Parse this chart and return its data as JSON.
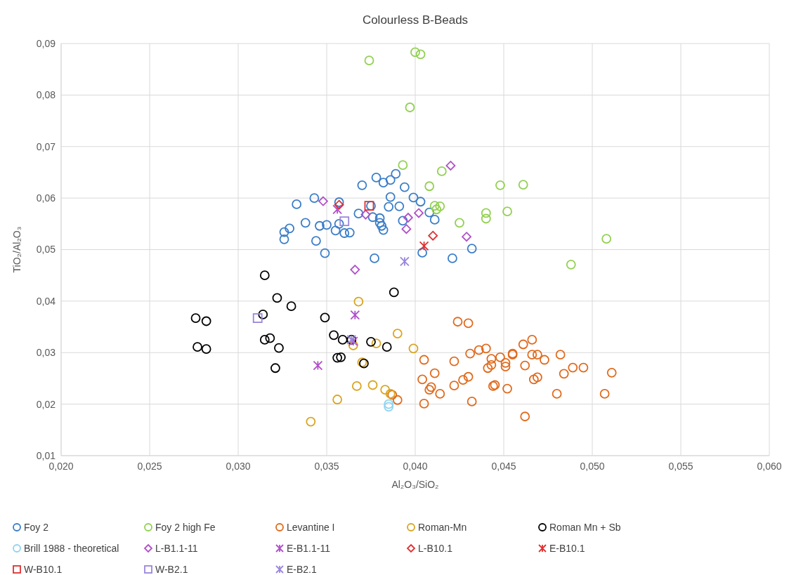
{
  "chart_data": {
    "type": "scatter",
    "title": "Colourless B-Beads",
    "xlabel": "Al₂O₃/SiO₂",
    "ylabel": "TiO₂/Al₂O₃",
    "xlim": [
      0.02,
      0.06
    ],
    "ylim": [
      0.01,
      0.09
    ],
    "xticks": [
      {
        "value": 0.02,
        "label": "0,020"
      },
      {
        "value": 0.025,
        "label": "0,025"
      },
      {
        "value": 0.03,
        "label": "0,030"
      },
      {
        "value": 0.035,
        "label": "0,035"
      },
      {
        "value": 0.04,
        "label": "0,040"
      },
      {
        "value": 0.045,
        "label": "0,045"
      },
      {
        "value": 0.05,
        "label": "0,050"
      },
      {
        "value": 0.055,
        "label": "0,055"
      },
      {
        "value": 0.06,
        "label": "0,060"
      }
    ],
    "yticks": [
      {
        "value": 0.01,
        "label": "0,01"
      },
      {
        "value": 0.02,
        "label": "0,02"
      },
      {
        "value": 0.03,
        "label": "0,03"
      },
      {
        "value": 0.04,
        "label": "0,04"
      },
      {
        "value": 0.05,
        "label": "0,05"
      },
      {
        "value": 0.06,
        "label": "0,06"
      },
      {
        "value": 0.07,
        "label": "0,07"
      },
      {
        "value": 0.08,
        "label": "0,08"
      },
      {
        "value": 0.09,
        "label": "0,09"
      }
    ],
    "grid": true,
    "legend": "bottom",
    "series": [
      {
        "name": "Foy 2",
        "color": "#3a7dc8",
        "marker": "circle",
        "x": [
          0.0333,
          0.0343,
          0.0338,
          0.0346,
          0.035,
          0.0355,
          0.0357,
          0.0357,
          0.036,
          0.0363,
          0.0326,
          0.0329,
          0.0326,
          0.0344,
          0.0349,
          0.037,
          0.0368,
          0.0376,
          0.0378,
          0.0382,
          0.0386,
          0.0389,
          0.0394,
          0.0386,
          0.0385,
          0.038,
          0.038,
          0.0381,
          0.0382,
          0.0391,
          0.0393,
          0.0399,
          0.0403,
          0.0408,
          0.0411,
          0.0377,
          0.0404,
          0.0421,
          0.0432,
          0.0375
        ],
        "values": [
          0.0588,
          0.06,
          0.0552,
          0.0546,
          0.0548,
          0.0537,
          0.0592,
          0.055,
          0.0532,
          0.0533,
          0.0534,
          0.0541,
          0.052,
          0.0517,
          0.0493,
          0.0625,
          0.057,
          0.0563,
          0.064,
          0.063,
          0.0635,
          0.0647,
          0.0621,
          0.0602,
          0.0583,
          0.0561,
          0.0552,
          0.0546,
          0.0538,
          0.0584,
          0.0556,
          0.0601,
          0.0593,
          0.0572,
          0.0558,
          0.0483,
          0.0494,
          0.0483,
          0.0502,
          0.0585
        ]
      },
      {
        "name": "Foy 2 high Fe",
        "color": "#92d050",
        "marker": "circle",
        "x": [
          0.0374,
          0.04,
          0.0403,
          0.0397,
          0.0393,
          0.0415,
          0.0408,
          0.0411,
          0.0414,
          0.0412,
          0.0425,
          0.044,
          0.044,
          0.0452,
          0.0448,
          0.0461,
          0.0508,
          0.0488
        ],
        "values": [
          0.0867,
          0.0883,
          0.0879,
          0.0776,
          0.0664,
          0.0652,
          0.0623,
          0.0585,
          0.0584,
          0.0578,
          0.0552,
          0.0571,
          0.056,
          0.0574,
          0.0625,
          0.0626,
          0.0521,
          0.0471
        ]
      },
      {
        "name": "Levantine I",
        "color": "#e06a1c",
        "marker": "circle",
        "x": [
          0.0424,
          0.043,
          0.0405,
          0.0404,
          0.0411,
          0.0409,
          0.0408,
          0.0405,
          0.0414,
          0.0422,
          0.0422,
          0.0427,
          0.043,
          0.0431,
          0.0436,
          0.044,
          0.0432,
          0.0441,
          0.0443,
          0.0443,
          0.0444,
          0.0445,
          0.0448,
          0.0451,
          0.0451,
          0.0452,
          0.0455,
          0.0455,
          0.0461,
          0.0462,
          0.0466,
          0.0466,
          0.0469,
          0.0467,
          0.0469,
          0.0473,
          0.0462,
          0.048,
          0.0482,
          0.0484,
          0.0489,
          0.0495,
          0.0507,
          0.0511,
          0.0387,
          0.039
        ],
        "values": [
          0.036,
          0.0357,
          0.0286,
          0.0248,
          0.026,
          0.0233,
          0.0228,
          0.0201,
          0.022,
          0.0283,
          0.0236,
          0.0247,
          0.0253,
          0.0298,
          0.0305,
          0.0308,
          0.0205,
          0.027,
          0.0276,
          0.0288,
          0.0235,
          0.0237,
          0.0291,
          0.028,
          0.0273,
          0.023,
          0.0296,
          0.0298,
          0.0316,
          0.0275,
          0.0325,
          0.0296,
          0.0296,
          0.0248,
          0.0252,
          0.0286,
          0.0176,
          0.022,
          0.0296,
          0.0259,
          0.0271,
          0.0271,
          0.022,
          0.0261,
          0.0218,
          0.0208
        ]
      },
      {
        "name": "Roman-Mn",
        "color": "#d9a520",
        "marker": "circle",
        "x": [
          0.0341,
          0.0356,
          0.0365,
          0.0367,
          0.0368,
          0.037,
          0.0376,
          0.0378,
          0.0383,
          0.039,
          0.0399,
          0.0386
        ],
        "values": [
          0.0166,
          0.0209,
          0.0314,
          0.0235,
          0.0399,
          0.0281,
          0.0237,
          0.0318,
          0.0228,
          0.0337,
          0.0308,
          0.022
        ]
      },
      {
        "name": "Roman Mn + Sb",
        "color": "#000000",
        "marker": "circle",
        "x": [
          0.0276,
          0.0282,
          0.0277,
          0.0282,
          0.0315,
          0.0314,
          0.0315,
          0.0318,
          0.0322,
          0.0323,
          0.0321,
          0.033,
          0.0349,
          0.0354,
          0.0356,
          0.0358,
          0.0359,
          0.0364,
          0.0371,
          0.0375,
          0.0384,
          0.0388
        ],
        "values": [
          0.0367,
          0.0361,
          0.0311,
          0.0307,
          0.045,
          0.0374,
          0.0325,
          0.0328,
          0.0406,
          0.0309,
          0.027,
          0.039,
          0.0368,
          0.0334,
          0.029,
          0.0291,
          0.0325,
          0.0325,
          0.0279,
          0.0321,
          0.0311,
          0.0417
        ]
      },
      {
        "name": "Brill 1988 - theoretical",
        "color": "#8fd3f0",
        "marker": "circle",
        "x": [
          0.0385,
          0.0385
        ],
        "values": [
          0.02,
          0.0195
        ]
      },
      {
        "name": "L-B1.1-11",
        "color": "#b050c8",
        "marker": "diamond",
        "x": [
          0.0348,
          0.0366,
          0.0372,
          0.0395,
          0.0396,
          0.0402,
          0.042,
          0.0429
        ],
        "values": [
          0.0594,
          0.0461,
          0.0568,
          0.054,
          0.0562,
          0.0571,
          0.0663,
          0.0525
        ]
      },
      {
        "name": "E-B1.1-11",
        "color": "#b050c8",
        "marker": "cross",
        "x": [
          0.0356,
          0.0345,
          0.0366,
          0.0365
        ],
        "values": [
          0.0578,
          0.0275,
          0.0373,
          0.0322
        ]
      },
      {
        "name": "L-B10.1",
        "color": "#e03030",
        "marker": "diamond",
        "x": [
          0.0357,
          0.041
        ],
        "values": [
          0.0587,
          0.0527
        ]
      },
      {
        "name": "E-B10.1",
        "color": "#e03030",
        "marker": "cross",
        "x": [
          0.0405
        ],
        "values": [
          0.0507
        ]
      },
      {
        "name": "W-B10.1",
        "color": "#e03030",
        "marker": "square",
        "x": [
          0.0374
        ],
        "values": [
          0.0585
        ]
      },
      {
        "name": "W-B2.1",
        "color": "#9b86de",
        "marker": "square",
        "x": [
          0.0311,
          0.036
        ],
        "values": [
          0.0367,
          0.0555
        ]
      },
      {
        "name": "E-B2.1",
        "color": "#9b86de",
        "marker": "cross",
        "x": [
          0.0394,
          0.0364
        ],
        "values": [
          0.0477,
          0.0325
        ]
      }
    ]
  }
}
